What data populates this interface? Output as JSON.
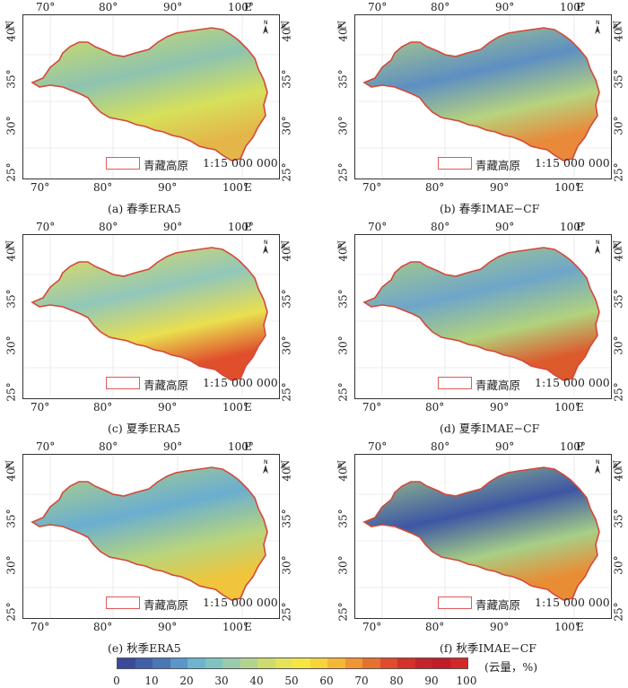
{
  "panels": [
    {
      "caption": "(a) 春季ERA5",
      "legend_label": "青藏高原",
      "scale": "1:15 000 000"
    },
    {
      "caption": "(b) 春季IMAE−CF",
      "legend_label": "青藏高原",
      "scale": "1:15 000 000"
    },
    {
      "caption": "(c) 夏季ERA5",
      "legend_label": "青藏高原",
      "scale": "1:15 000 000"
    },
    {
      "caption": "(d) 夏季IMAE−CF",
      "legend_label": "青藏高原",
      "scale": "1:15 000 000"
    },
    {
      "caption": "(e) 秋季ERA5",
      "legend_label": "青藏高原",
      "scale": "1:15 000 000"
    },
    {
      "caption": "(f) 秋季IMAE−CF",
      "legend_label": "青藏高原",
      "scale": "1:15 000 000"
    }
  ],
  "axes": {
    "lon_ticks": [
      "70°",
      "80°",
      "90°",
      "100°"
    ],
    "lon_unit": "E",
    "lat_ticks": [
      "25°",
      "30°",
      "35°",
      "40°"
    ],
    "lat_unit": "N",
    "north_label": "N"
  },
  "colorbar": {
    "ticks": [
      "0",
      "10",
      "20",
      "30",
      "40",
      "50",
      "60",
      "70",
      "80",
      "90",
      "100"
    ],
    "unit_label": "(云量，%)",
    "colors": [
      "#3b4a9b",
      "#3f5fa8",
      "#4b77b5",
      "#5a97c8",
      "#6db5cf",
      "#7fc4c1",
      "#98ccab",
      "#b3d48f",
      "#cedc6e",
      "#e6e358",
      "#f4e742",
      "#f6d43a",
      "#f4b736",
      "#ef9534",
      "#e8702f",
      "#df4b2b",
      "#d5312a",
      "#c5232a",
      "#c01d26",
      "#d3282a"
    ]
  },
  "regions": [
    {
      "fill": "#d6e05a",
      "cold": "#8ec3b0",
      "warm": "#e4b64a"
    },
    {
      "fill": "#b7d37e",
      "cold": "#5d8fc2",
      "warm": "#e88a3a"
    },
    {
      "fill": "#eadf4f",
      "cold": "#91c7ba",
      "warm": "#e04f2c"
    },
    {
      "fill": "#b2d27c",
      "cold": "#6ea6c9",
      "warm": "#dd5a2d"
    },
    {
      "fill": "#b8d57c",
      "cold": "#6aaed0",
      "warm": "#f0c53c"
    },
    {
      "fill": "#a7cf86",
      "cold": "#3d56a5",
      "warm": "#e98d35"
    }
  ]
}
